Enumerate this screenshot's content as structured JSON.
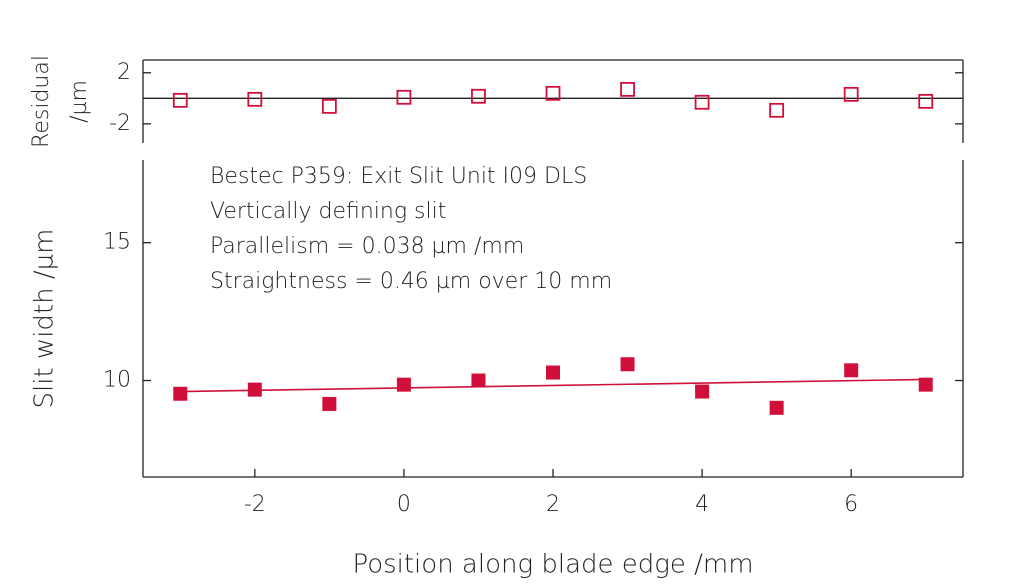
{
  "chart_data": [
    {
      "type": "scatter",
      "ylabel": [
        "Residual",
        "/µm"
      ],
      "xlim": [
        -3.5,
        7.5
      ],
      "ylim": [
        -3.5,
        3
      ],
      "yticks": [
        -2,
        2
      ],
      "hline": 0,
      "series": [
        {
          "marker": "open-square",
          "color": "#d0103a",
          "x": [
            -3,
            -2,
            -1,
            0,
            1,
            2,
            3,
            4,
            5,
            6,
            7
          ],
          "values": [
            -0.16,
            -0.08,
            -0.63,
            0.08,
            0.16,
            0.39,
            0.7,
            -0.31,
            -0.94,
            0.31,
            -0.24
          ]
        }
      ]
    },
    {
      "type": "scatter",
      "xlabel": "Position along blade edge /mm",
      "ylabel": "Slit width /µm",
      "xlim": [
        -3.5,
        7.5
      ],
      "ylim": [
        6.5,
        18
      ],
      "xticks": [
        -2,
        0,
        2,
        4,
        6
      ],
      "yticks": [
        10,
        15
      ],
      "annotations": [
        "Bestec P359: Exit Slit Unit I09 DLS",
        "Vertically defining slit",
        "Parallelism = 0.038 µm /mm",
        "Straightness = 0.46 µm over 10 mm"
      ],
      "series": [
        {
          "marker": "filled-square",
          "color": "#d0103a",
          "x": [
            -3,
            -2,
            -1,
            0,
            1,
            2,
            3,
            4,
            5,
            6,
            7
          ],
          "values": [
            9.52,
            9.67,
            9.15,
            9.85,
            10.0,
            10.29,
            10.59,
            9.6,
            9.01,
            10.37,
            9.85
          ]
        },
        {
          "marker": "line",
          "color": "#d0103a",
          "x": [
            -3,
            7
          ],
          "values": [
            9.6,
            10.04
          ]
        }
      ]
    }
  ]
}
